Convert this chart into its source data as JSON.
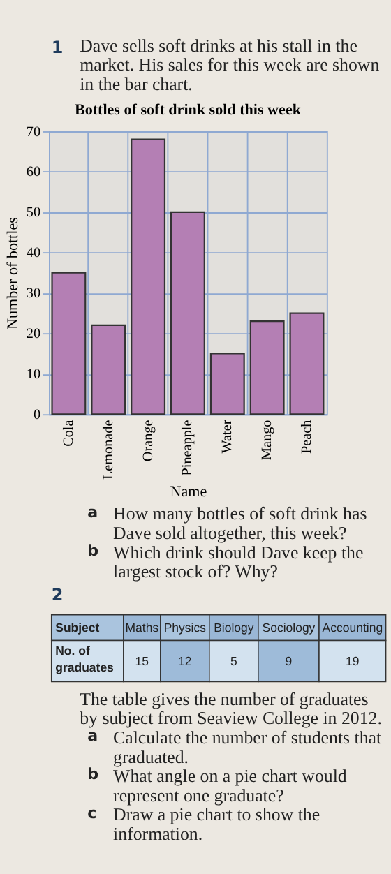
{
  "chart_data": [
    {
      "type": "bar",
      "title": "Bottles of soft drink sold this week",
      "xlabel": "Name",
      "ylabel": "Number of bottles",
      "categories": [
        "Cola",
        "Lemonade",
        "Orange",
        "Pineapple",
        "Water",
        "Mango",
        "Peach"
      ],
      "values": [
        35,
        22,
        68,
        50,
        15,
        23,
        25
      ],
      "color": "#b47fb4",
      "ylim": [
        0,
        70
      ],
      "yticks": [
        0,
        10,
        20,
        30,
        40,
        50,
        60,
        70
      ],
      "grid": true,
      "annotations": [
        "1",
        "Dave sells soft drinks at his stall in the market. His sales for this week are shown in the bar chart.",
        "a",
        "How many bottles of soft drink has Dave sold altogether, this week?",
        "b",
        "Which drink should Dave keep the largest stock of? Why?"
      ]
    },
    {
      "type": "other",
      "categories": [
        "Maths",
        "Physics",
        "Biology",
        "Sociology",
        "Accounting"
      ],
      "values": [
        15,
        12,
        5,
        9,
        19
      ],
      "data_labels": true,
      "annotations": [
        "2",
        "Subject",
        "No. of graduates",
        "The table gives the number of graduates by subject from Seaview College in 2012.",
        "a",
        "Calculate the number of students that graduated.",
        "b",
        "What angle on a pie chart would represent one graduate?",
        "c",
        "Draw a pie chart to show the information."
      ]
    }
  ]
}
